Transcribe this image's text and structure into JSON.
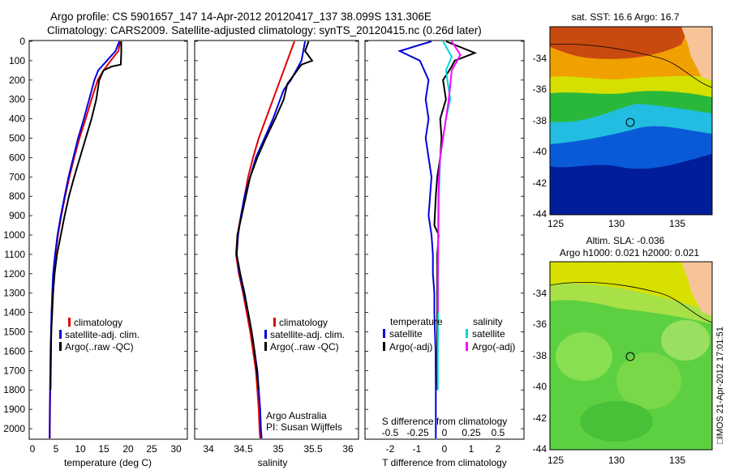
{
  "title_line1": "Argo profile: CS 5901657_147 14-Apr-2012 20120417_137 38.099S 131.306E",
  "title_line2": "Climatology: CARS2009. Satellite-adjusted climatology: synTS_20120415.nc (0.26d later)",
  "colors": {
    "climatology": "#e00000",
    "satellite": "#0000e0",
    "argo": "#000000",
    "argo_adj": "#ff00ff",
    "sat_sal": "#00d8d8"
  },
  "depth_ticks": [
    0,
    100,
    200,
    300,
    400,
    500,
    600,
    700,
    800,
    900,
    1000,
    1100,
    1200,
    1300,
    1400,
    1500,
    1600,
    1700,
    1800,
    1900,
    2000
  ],
  "panel_temp": {
    "xlabel": "temperature (deg C)",
    "xticks": [
      "0",
      "5",
      "10",
      "15",
      "20",
      "25",
      "30"
    ],
    "legend": [
      "climatology",
      "satellite-adj. clim.",
      "Argo(..raw -QC)"
    ]
  },
  "panel_sal": {
    "xlabel": "salinity",
    "xticks": [
      "34",
      "34.5",
      "35",
      "35.5",
      "36"
    ],
    "legend": [
      "climatology",
      "satellite-adj. clim.",
      "Argo(..raw -QC)"
    ],
    "note1": "Argo Australia",
    "note2": "PI: Susan Wijffels"
  },
  "panel_diff": {
    "top_label": "S difference from climatology",
    "top_ticks": [
      "-0.5",
      "-0.25",
      "0",
      "0.25",
      "0.5"
    ],
    "xlabel": "T difference from climatology",
    "xticks": [
      "-2",
      "-1",
      "0",
      "1",
      "2"
    ],
    "legend_temp_title": "temperature",
    "legend_sal_title": "salinity",
    "legend_temp": [
      "satellite",
      "Argo(-adj)"
    ],
    "legend_sal": [
      "satellite",
      "Argo(-adj)"
    ]
  },
  "map_sst": {
    "title": "sat. SST: 16.6 Argo: 16.7",
    "yticks": [
      "-34",
      "-36",
      "-38",
      "-40",
      "-42",
      "-44"
    ],
    "xticks": [
      "125",
      "130",
      "135"
    ]
  },
  "map_sla": {
    "title1": "Altim. SLA: -0.036",
    "title2": "Argo h1000: 0.021 h2000: 0.021",
    "yticks": [
      "-34",
      "-36",
      "-38",
      "-40",
      "-42",
      "-44"
    ],
    "xticks": [
      "125",
      "130",
      "135"
    ]
  },
  "side_label": "□IMOS 21-Apr-2012 17:01:51",
  "chart_data": [
    {
      "type": "line",
      "panel": "temperature profile",
      "xlabel": "temperature (deg C)",
      "xlim": [
        -2,
        31
      ],
      "ylim": [
        0,
        2050
      ],
      "series": [
        {
          "name": "climatology",
          "x": [
            17.0,
            16.6,
            15.0,
            13.5,
            12.3,
            11.0,
            9.8,
            8.5,
            7.4,
            6.4,
            5.5,
            4.7,
            4.0,
            3.5,
            3.1,
            2.9,
            2.7,
            2.6,
            2.5,
            2.45,
            2.4,
            2.35,
            2.3
          ],
          "y": [
            0,
            50,
            100,
            150,
            200,
            300,
            400,
            500,
            600,
            700,
            800,
            900,
            1000,
            1100,
            1200,
            1300,
            1400,
            1500,
            1600,
            1700,
            1800,
            1900,
            2050
          ]
        },
        {
          "name": "satellite-adj. clim.",
          "x": [
            16.8,
            16.0,
            14.2,
            12.4,
            11.6,
            10.5,
            9.4,
            8.2,
            7.2,
            6.2,
            5.4,
            4.6,
            3.9,
            3.4,
            3.0,
            2.8,
            2.65,
            2.55,
            2.45,
            2.4,
            2.35,
            2.3,
            2.25
          ],
          "y": [
            0,
            50,
            100,
            150,
            200,
            300,
            400,
            500,
            600,
            700,
            800,
            900,
            1000,
            1100,
            1200,
            1300,
            1400,
            1500,
            1600,
            1700,
            1800,
            1900,
            2050
          ]
        },
        {
          "name": "Argo(..raw -QC)",
          "x": [
            17.2,
            17.2,
            17.1,
            15.2,
            13.5,
            12.6,
            12.0,
            11.0,
            9.8,
            8.6,
            7.4,
            6.3,
            5.4,
            4.6,
            3.8,
            3.3,
            3.0,
            2.8,
            2.6,
            2.55,
            2.5,
            2.45
          ],
          "y": [
            0,
            60,
            120,
            130,
            150,
            200,
            300,
            400,
            500,
            600,
            700,
            800,
            900,
            1000,
            1100,
            1200,
            1300,
            1400,
            1500,
            1600,
            1700,
            1800
          ]
        }
      ]
    },
    {
      "type": "line",
      "panel": "salinity profile",
      "xlabel": "salinity",
      "xlim": [
        33.8,
        36.1
      ],
      "ylim": [
        0,
        2050
      ],
      "series": [
        {
          "name": "climatology",
          "x": [
            35.2,
            35.1,
            35.0,
            34.95,
            34.9,
            34.8,
            34.7,
            34.62,
            34.55,
            34.5,
            34.45,
            34.4,
            34.38,
            34.42,
            34.48,
            34.53,
            34.58,
            34.62,
            34.66,
            34.68,
            34.7,
            34.71,
            34.72
          ],
          "y": [
            0,
            100,
            200,
            250,
            300,
            400,
            500,
            600,
            700,
            800,
            900,
            1000,
            1100,
            1200,
            1300,
            1400,
            1500,
            1600,
            1700,
            1800,
            1900,
            2000,
            2050
          ]
        },
        {
          "name": "satellite-adj. clim.",
          "x": [
            35.35,
            35.3,
            35.15,
            35.05,
            35.0,
            34.9,
            34.78,
            34.66,
            34.58,
            34.5,
            34.45,
            34.41,
            34.39,
            34.43,
            34.49,
            34.55,
            34.6,
            34.64,
            34.68,
            34.7,
            34.72,
            34.73,
            34.74
          ],
          "y": [
            0,
            100,
            200,
            250,
            300,
            400,
            500,
            600,
            700,
            800,
            900,
            1000,
            1100,
            1200,
            1300,
            1400,
            1500,
            1600,
            1700,
            1800,
            1900,
            2000,
            2050
          ]
        },
        {
          "name": "Argo(..raw -QC)",
          "x": [
            35.4,
            35.35,
            35.45,
            35.3,
            35.2,
            35.1,
            35.05,
            34.93,
            34.8,
            34.68,
            34.58,
            34.52,
            34.46,
            34.4,
            34.39,
            34.44,
            34.5,
            34.55,
            34.6,
            34.64,
            34.67,
            34.7
          ],
          "y": [
            0,
            50,
            100,
            120,
            170,
            220,
            300,
            400,
            500,
            600,
            700,
            800,
            900,
            1000,
            1100,
            1200,
            1300,
            1400,
            1500,
            1600,
            1700,
            1800
          ]
        }
      ]
    },
    {
      "type": "line",
      "panel": "difference from climatology",
      "xlabel": "T difference from climatology",
      "top_axis": "S difference from climatology",
      "xlim": [
        -2.5,
        3.0
      ],
      "ylim": [
        0,
        2050
      ],
      "series": [
        {
          "name": "temperature satellite",
          "x": [
            -0.2,
            -1.3,
            -0.6,
            -0.3,
            -0.4,
            -0.3,
            -0.4,
            -0.3,
            -0.2,
            -0.25,
            -0.3,
            -0.2,
            -0.15,
            -0.15,
            -0.1,
            -0.1,
            -0.08,
            -0.06,
            -0.05,
            -0.05
          ],
          "y": [
            0,
            50,
            100,
            200,
            300,
            400,
            500,
            600,
            700,
            800,
            900,
            1000,
            1100,
            1200,
            1300,
            1400,
            1500,
            1600,
            1800,
            2050
          ]
        },
        {
          "name": "temperature Argo(-adj)",
          "x": [
            0.3,
            1.3,
            0.6,
            0.5,
            0.2,
            0.3,
            0.1,
            0.15,
            0.1,
            0.0,
            -0.05,
            -0.1,
            0.05,
            0.0,
            0.0,
            0.0,
            0.0
          ],
          "y": [
            0,
            60,
            100,
            130,
            200,
            300,
            400,
            500,
            600,
            700,
            800,
            950,
            1000,
            1100,
            1300,
            1500,
            1800
          ]
        },
        {
          "name": "salinity satellite",
          "x": [
            0.2,
            0.5,
            0.3,
            0.45,
            0.3,
            0.2,
            0.1,
            0.08,
            0.06,
            0.05,
            0.04,
            0.03,
            0.03,
            0.02,
            0.02
          ],
          "y": [
            0,
            80,
            150,
            300,
            400,
            500,
            600,
            700,
            800,
            900,
            1000,
            1200,
            1400,
            1600,
            1800
          ]
        },
        {
          "name": "salinity Argo(-adj)",
          "x": [
            0.5,
            0.8,
            0.5,
            0.4,
            0.3,
            0.2,
            0.1,
            0.06,
            0.04,
            0.03,
            0.02,
            0.02
          ],
          "y": [
            0,
            70,
            150,
            300,
            400,
            500,
            600,
            700,
            800,
            1000,
            1200,
            1400
          ]
        }
      ]
    }
  ]
}
